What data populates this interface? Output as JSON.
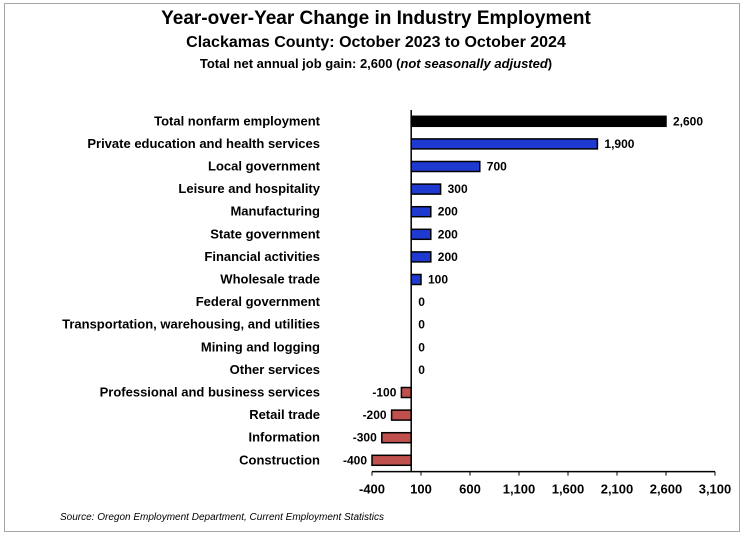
{
  "title": "Year-over-Year Change in Industry Employment",
  "subtitle": "Clackamas County: October 2023 to October 2024",
  "subtitle2": {
    "prefix": "Total net annual job gain: 2,600 (",
    "italic": "not seasonally adjusted",
    "suffix": ")"
  },
  "source": "Source: Oregon Employment Department, Current Employment Statistics",
  "colors": {
    "total": "#000000",
    "positive": "#1f3ad1",
    "negative": "#c0504d",
    "axis": "#000000"
  },
  "chart_data": {
    "type": "bar",
    "orientation": "horizontal",
    "categories": [
      "Total nonfarm employment",
      "Private education and health services",
      "Local government",
      "Leisure and hospitality",
      "Manufacturing",
      "State government",
      "Financial activities",
      "Wholesale trade",
      "Federal government",
      "Transportation, warehousing, and utilities",
      "Mining and logging",
      "Other services",
      "Professional and business services",
      "Retail trade",
      "Information",
      "Construction"
    ],
    "values": [
      2600,
      1900,
      700,
      300,
      200,
      200,
      200,
      100,
      0,
      0,
      0,
      0,
      -100,
      -200,
      -300,
      -400
    ],
    "value_labels": [
      "2,600",
      "1,900",
      "700",
      "300",
      "200",
      "200",
      "200",
      "100",
      "0",
      "0",
      "0",
      "0",
      "-100",
      "-200",
      "-300",
      "-400"
    ],
    "xlim": [
      -400,
      3100
    ],
    "xticks": [
      -400,
      100,
      600,
      1100,
      1600,
      2100,
      2600,
      3100
    ],
    "xtick_labels": [
      "-400",
      "100",
      "600",
      "1,100",
      "1,600",
      "2,100",
      "2,600",
      "3,100"
    ],
    "grid": false,
    "legend": false
  }
}
